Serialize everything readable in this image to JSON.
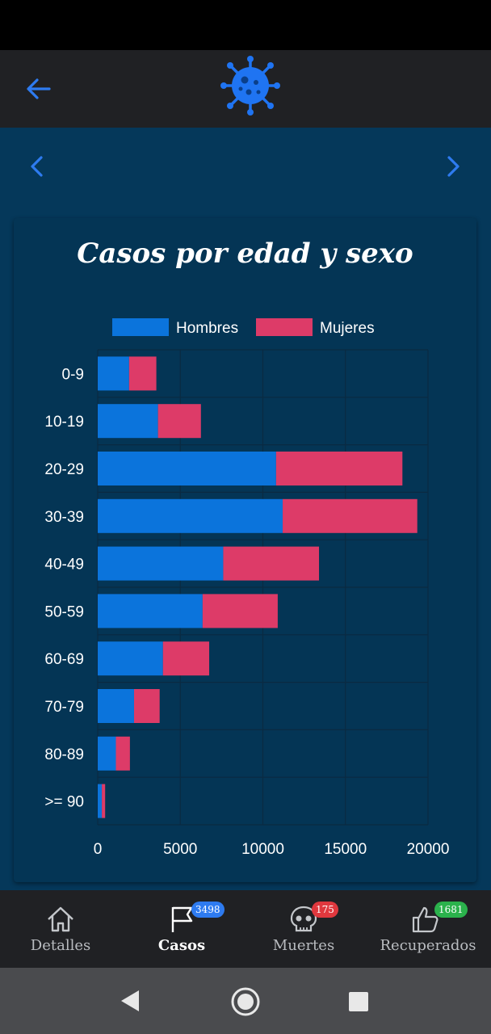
{
  "app": {
    "logo_icon": "virus-icon",
    "back_icon": "arrow-left-icon"
  },
  "colors": {
    "accent": "#2e7bf0",
    "hombres": "#0b74dc",
    "mujeres": "#dd3b68",
    "background": "#05385a",
    "bar_bg": "#202124"
  },
  "pager": {
    "prev_icon": "chevron-left-icon",
    "next_icon": "chevron-right-icon"
  },
  "card": {
    "title": "Casos por edad y sexo"
  },
  "chart_data": {
    "type": "bar",
    "orientation": "horizontal",
    "stacked": true,
    "title": "Casos por edad y sexo",
    "categories": [
      "0-9",
      "10-19",
      "20-29",
      "30-39",
      "40-49",
      "50-59",
      "60-69",
      "70-79",
      "80-89",
      ">= 90"
    ],
    "series": [
      {
        "name": "Hombres",
        "color": "#0b74dc",
        "values": [
          1900,
          3650,
          10800,
          11200,
          7600,
          6350,
          3950,
          2200,
          1100,
          250
        ]
      },
      {
        "name": "Mujeres",
        "color": "#dd3b68",
        "values": [
          1650,
          2600,
          7650,
          8150,
          5800,
          4550,
          2800,
          1550,
          850,
          200
        ]
      }
    ],
    "xlim": [
      0,
      20000
    ],
    "xticks": [
      0,
      5000,
      10000,
      15000,
      20000
    ],
    "grid": true,
    "legend": "top"
  },
  "bottom_nav": {
    "tabs": [
      {
        "label": "Detalles",
        "icon": "home-icon",
        "active": false
      },
      {
        "label": "Casos",
        "icon": "flag-icon",
        "badge": "3498",
        "badge_color": "#2e7bf0",
        "active": true
      },
      {
        "label": "Muertes",
        "icon": "skull-icon",
        "badge": "175",
        "badge_color": "#e0383e",
        "active": false
      },
      {
        "label": "Recuperados",
        "icon": "thumbs-up-icon",
        "badge": "1681",
        "badge_color": "#2bb24c",
        "active": false
      }
    ]
  },
  "system_nav": {
    "back_icon": "triangle-back-icon",
    "home_icon": "circle-home-icon",
    "recents_icon": "square-recents-icon"
  }
}
